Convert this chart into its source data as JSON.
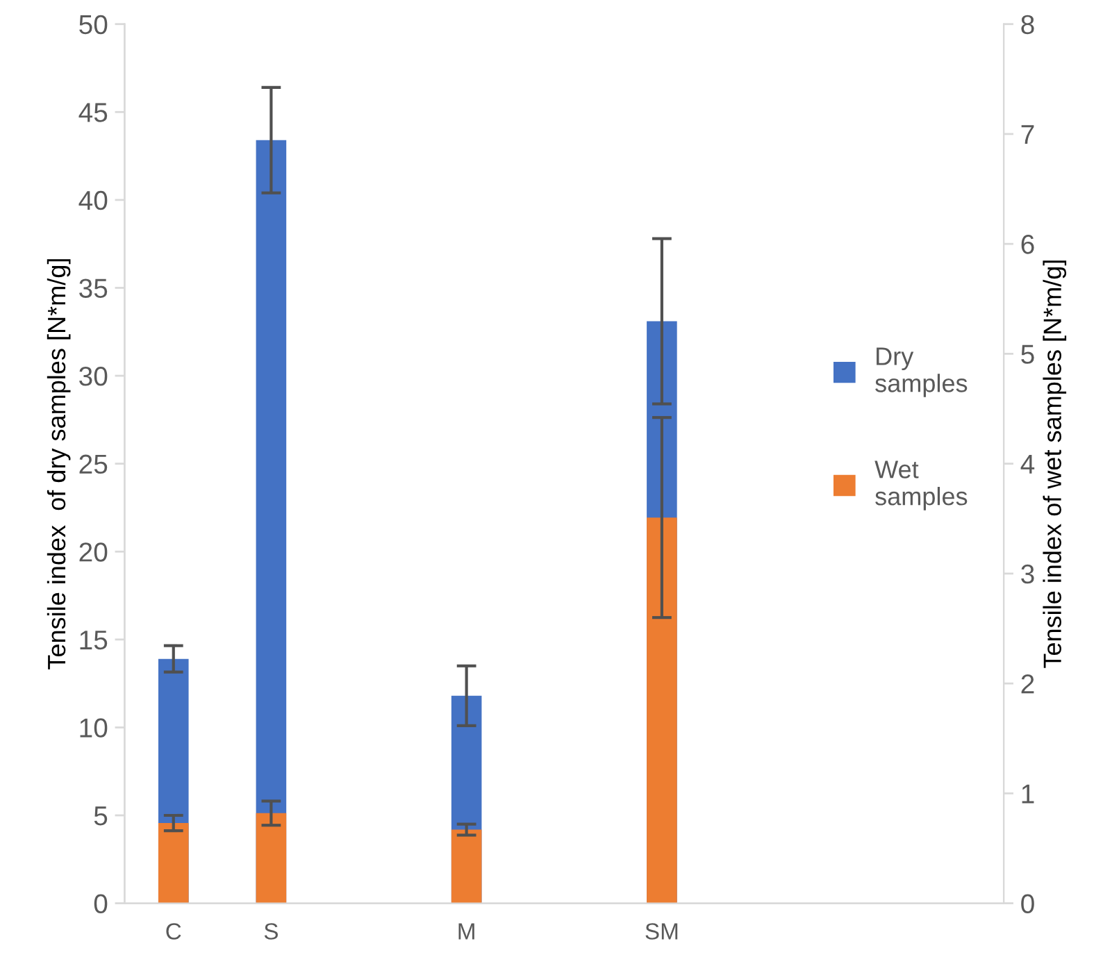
{
  "chart_data": {
    "type": "bar",
    "categories": [
      "C",
      "S",
      null,
      "M",
      null,
      "SM",
      null,
      null,
      null
    ],
    "ylabel": "Tensile index  of dry samples [N*m/g]",
    "y2label": "Tensile index of wet samples [N*m/g]",
    "series": [
      {
        "name": "Dry samples",
        "color": "#4472c4",
        "values": [
          13.9,
          43.4,
          null,
          11.8,
          null,
          33.1,
          null,
          null,
          null
        ],
        "errors": [
          0.75,
          3.0,
          null,
          1.7,
          null,
          4.7,
          null,
          null,
          null
        ]
      },
      {
        "name": "Wet samples",
        "color": "#ed7d31",
        "axis": "y2",
        "values": [
          0.73,
          0.82,
          null,
          0.67,
          null,
          3.51,
          null,
          null,
          null
        ],
        "errors": [
          0.07,
          0.11,
          null,
          0.05,
          null,
          0.91,
          null,
          null,
          null
        ]
      }
    ],
    "ylim": [
      0,
      50
    ],
    "yticks": [
      0,
      5,
      10,
      15,
      20,
      25,
      30,
      35,
      40,
      45,
      50
    ],
    "y2lim": [
      0,
      8
    ],
    "y2ticks": [
      0,
      1,
      2,
      3,
      4,
      5,
      6,
      7,
      8
    ],
    "grid": false,
    "legend": "right"
  }
}
